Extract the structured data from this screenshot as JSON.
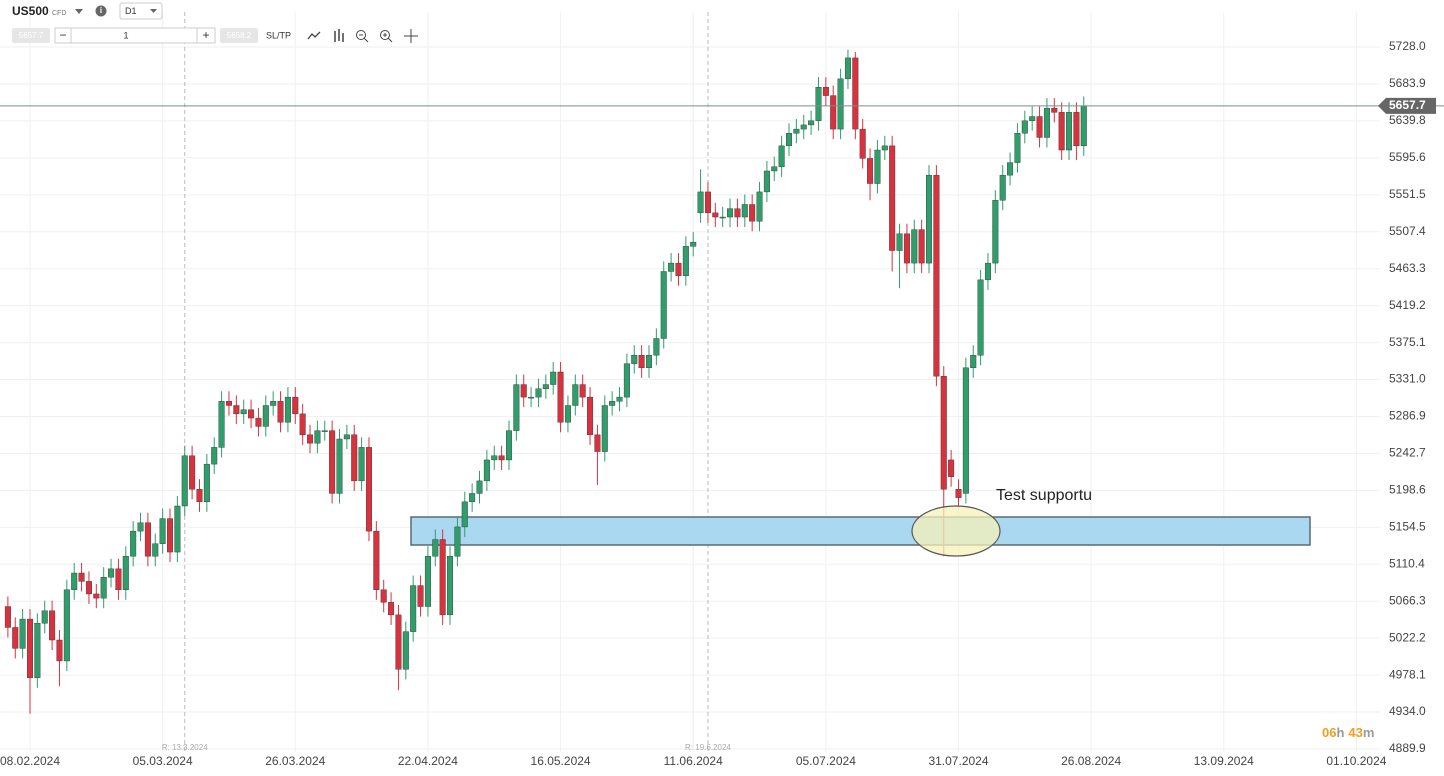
{
  "header": {
    "symbol": "US500",
    "instrument_type": "CFD",
    "timeframe": "D1",
    "bid": "5657.7",
    "quantity": "1",
    "ask": "5658.2",
    "sl_tp": "SL/TP"
  },
  "chart_data": {
    "type": "candlestick",
    "up_color": "#2f9e6b",
    "down_color": "#d8323f",
    "xlim": [
      -1.07,
      186.2
    ],
    "xticks": [
      {
        "value": 3,
        "label": "08.02.2024"
      },
      {
        "value": 21,
        "label": "05.03.2024"
      },
      {
        "value": 39,
        "label": "26.03.2024"
      },
      {
        "value": 57,
        "label": "22.04.2024"
      },
      {
        "value": 75,
        "label": "16.05.2024"
      },
      {
        "value": 93,
        "label": "11.06.2024"
      },
      {
        "value": 111,
        "label": "05.07.2024"
      },
      {
        "value": 129,
        "label": "31.07.2024"
      },
      {
        "value": 147,
        "label": "26.08.2024"
      },
      {
        "value": 165,
        "label": "13.09.2024"
      },
      {
        "value": 183,
        "label": "01.10.2024"
      }
    ],
    "ylim": [
      4886.3,
      5769.8
    ],
    "yticks": [
      {
        "value": 5728,
        "label": "5728.0"
      },
      5683.9,
      5639.8,
      5595.6,
      5551.5,
      5507.4,
      5463.3,
      5419.2,
      5375.1,
      {
        "value": 5331,
        "label": "5331.0"
      },
      5286.9,
      5242.7,
      5198.6,
      5154.5,
      5110.4,
      5066.3,
      5022.2,
      4978.1,
      {
        "value": 4934,
        "label": "4934.0"
      },
      4889.9
    ],
    "grid": true,
    "last_price": 5657.7,
    "markers": [
      {
        "x": 24,
        "label": "R: 13.3.2024"
      },
      {
        "x": 95,
        "label": "R: 19.6.2024"
      }
    ],
    "annotation": "Test supportu",
    "countdown": {
      "hours": "06",
      "hours_unit": "h",
      "minutes": "43",
      "minutes_unit": "m"
    },
    "ohlc": [
      [
        5060,
        5072,
        5023,
        5035
      ],
      [
        5035,
        5047,
        4998,
        5010
      ],
      [
        5010,
        5057,
        4998,
        5045
      ],
      [
        5045,
        5057,
        4932,
        4975
      ],
      [
        4975,
        5052,
        4963,
        5040
      ],
      [
        5040,
        5067,
        5028,
        5055
      ],
      [
        5055,
        5067,
        5008,
        5020
      ],
      [
        5020,
        5032,
        4965,
        4995
      ],
      [
        4995,
        5092,
        4983,
        5080
      ],
      [
        5080,
        5112,
        5068,
        5100
      ],
      [
        5100,
        5112,
        5078,
        5090
      ],
      [
        5090,
        5102,
        5063,
        5075
      ],
      [
        5075,
        5087,
        5058,
        5070
      ],
      [
        5070,
        5107,
        5058,
        5095
      ],
      [
        5095,
        5117,
        5083,
        5105
      ],
      [
        5105,
        5117,
        5068,
        5080
      ],
      [
        5080,
        5132,
        5068,
        5120
      ],
      [
        5120,
        5162,
        5108,
        5150
      ],
      [
        5150,
        5172,
        5138,
        5160
      ],
      [
        5160,
        5172,
        5108,
        5120
      ],
      [
        5120,
        5147,
        5108,
        5135
      ],
      [
        5135,
        5177,
        5123,
        5165
      ],
      [
        5165,
        5177,
        5113,
        5125
      ],
      [
        5125,
        5192,
        5113,
        5180
      ],
      [
        5180,
        5252,
        5168,
        5240
      ],
      [
        5240,
        5252,
        5188,
        5200
      ],
      [
        5200,
        5212,
        5173,
        5185
      ],
      [
        5185,
        5242,
        5173,
        5230
      ],
      [
        5230,
        5262,
        5218,
        5250
      ],
      [
        5250,
        5317,
        5238,
        5305
      ],
      [
        5305,
        5317,
        5288,
        5300
      ],
      [
        5300,
        5312,
        5278,
        5290
      ],
      [
        5290,
        5307,
        5278,
        5295
      ],
      [
        5295,
        5307,
        5273,
        5285
      ],
      [
        5285,
        5297,
        5263,
        5275
      ],
      [
        5275,
        5312,
        5263,
        5300
      ],
      [
        5300,
        5317,
        5288,
        5305
      ],
      [
        5305,
        5317,
        5268,
        5280
      ],
      [
        5280,
        5322,
        5268,
        5310
      ],
      [
        5310,
        5322,
        5278,
        5290
      ],
      [
        5290,
        5302,
        5253,
        5265
      ],
      [
        5265,
        5277,
        5243,
        5255
      ],
      [
        5255,
        5282,
        5243,
        5270
      ],
      [
        5270,
        5282,
        5258,
        5270
      ],
      [
        5270,
        5282,
        5183,
        5195
      ],
      [
        5195,
        5272,
        5183,
        5260
      ],
      [
        5260,
        5277,
        5248,
        5265
      ],
      [
        5265,
        5277,
        5198,
        5210
      ],
      [
        5210,
        5262,
        5198,
        5250
      ],
      [
        5250,
        5262,
        5138,
        5150
      ],
      [
        5150,
        5162,
        5068,
        5080
      ],
      [
        5080,
        5092,
        5053,
        5065
      ],
      [
        5065,
        5077,
        5038,
        5050
      ],
      [
        5050,
        5062,
        4960,
        4985
      ],
      [
        4985,
        5042,
        4973,
        5030
      ],
      [
        5030,
        5097,
        5018,
        5085
      ],
      [
        5085,
        5097,
        5048,
        5060
      ],
      [
        5060,
        5132,
        5048,
        5120
      ],
      [
        5120,
        5152,
        5108,
        5140
      ],
      [
        5140,
        5152,
        5038,
        5050
      ],
      [
        5050,
        5132,
        5038,
        5120
      ],
      [
        5120,
        5167,
        5108,
        5155
      ],
      [
        5155,
        5197,
        5143,
        5185
      ],
      [
        5185,
        5207,
        5173,
        5195
      ],
      [
        5195,
        5222,
        5183,
        5210
      ],
      [
        5210,
        5247,
        5198,
        5235
      ],
      [
        5235,
        5252,
        5223,
        5240
      ],
      [
        5240,
        5252,
        5223,
        5235
      ],
      [
        5235,
        5282,
        5223,
        5270
      ],
      [
        5270,
        5337,
        5258,
        5325
      ],
      [
        5325,
        5337,
        5298,
        5310
      ],
      [
        5310,
        5322,
        5298,
        5310
      ],
      [
        5310,
        5332,
        5298,
        5320
      ],
      [
        5320,
        5337,
        5308,
        5325
      ],
      [
        5325,
        5352,
        5313,
        5340
      ],
      [
        5340,
        5352,
        5268,
        5280
      ],
      [
        5280,
        5312,
        5268,
        5300
      ],
      [
        5300,
        5337,
        5288,
        5325
      ],
      [
        5325,
        5337,
        5298,
        5310
      ],
      [
        5310,
        5322,
        5253,
        5265
      ],
      [
        5265,
        5277,
        5205,
        5245
      ],
      [
        5245,
        5312,
        5233,
        5300
      ],
      [
        5300,
        5317,
        5288,
        5305
      ],
      [
        5305,
        5322,
        5293,
        5310
      ],
      [
        5310,
        5362,
        5298,
        5350
      ],
      [
        5350,
        5372,
        5338,
        5360
      ],
      [
        5360,
        5372,
        5333,
        5345
      ],
      [
        5345,
        5372,
        5333,
        5360
      ],
      [
        5360,
        5392,
        5348,
        5380
      ],
      [
        5380,
        5472,
        5368,
        5460
      ],
      [
        5460,
        5482,
        5448,
        5470
      ],
      [
        5470,
        5482,
        5443,
        5455
      ],
      [
        5455,
        5502,
        5443,
        5490
      ],
      [
        5490,
        5507,
        5478,
        5495
      ],
      [
        5530,
        5582,
        5518,
        5555
      ],
      [
        5555,
        5567,
        5518,
        5530
      ],
      [
        5530,
        5542,
        5513,
        5525
      ],
      [
        5525,
        5537,
        5513,
        5525
      ],
      [
        5525,
        5547,
        5513,
        5535
      ],
      [
        5535,
        5547,
        5513,
        5525
      ],
      [
        5525,
        5552,
        5513,
        5540
      ],
      [
        5540,
        5552,
        5508,
        5520
      ],
      [
        5520,
        5567,
        5508,
        5555
      ],
      [
        5555,
        5592,
        5543,
        5580
      ],
      [
        5580,
        5597,
        5568,
        5585
      ],
      [
        5585,
        5622,
        5573,
        5610
      ],
      [
        5610,
        5637,
        5598,
        5625
      ],
      [
        5625,
        5642,
        5613,
        5630
      ],
      [
        5630,
        5647,
        5618,
        5635
      ],
      [
        5635,
        5652,
        5623,
        5640
      ],
      [
        5640,
        5692,
        5628,
        5680
      ],
      [
        5680,
        5692,
        5658,
        5670
      ],
      [
        5670,
        5682,
        5618,
        5630
      ],
      [
        5630,
        5702,
        5618,
        5690
      ],
      [
        5690,
        5725,
        5678,
        5715
      ],
      [
        5715,
        5722,
        5618,
        5630
      ],
      [
        5630,
        5642,
        5583,
        5595
      ],
      [
        5595,
        5607,
        5545,
        5565
      ],
      [
        5565,
        5617,
        5553,
        5605
      ],
      [
        5605,
        5622,
        5593,
        5610
      ],
      [
        5610,
        5622,
        5460,
        5485
      ],
      [
        5485,
        5517,
        5440,
        5505
      ],
      [
        5505,
        5517,
        5458,
        5470
      ],
      [
        5470,
        5522,
        5458,
        5510
      ],
      [
        5510,
        5522,
        5458,
        5470
      ],
      [
        5470,
        5587,
        5458,
        5575
      ],
      [
        5575,
        5587,
        5323,
        5335
      ],
      [
        5335,
        5347,
        5120,
        5200
      ],
      [
        5235,
        5247,
        5203,
        5215
      ],
      [
        5200,
        5212,
        5178,
        5190
      ],
      [
        5195,
        5357,
        5183,
        5345
      ],
      [
        5345,
        5372,
        5333,
        5360
      ],
      [
        5360,
        5462,
        5348,
        5450
      ],
      [
        5450,
        5482,
        5438,
        5470
      ],
      [
        5470,
        5557,
        5458,
        5545
      ],
      [
        5545,
        5587,
        5533,
        5575
      ],
      [
        5575,
        5602,
        5563,
        5590
      ],
      [
        5590,
        5637,
        5578,
        5625
      ],
      [
        5625,
        5652,
        5613,
        5640
      ],
      [
        5640,
        5657,
        5628,
        5645
      ],
      [
        5645,
        5657,
        5608,
        5620
      ],
      [
        5620,
        5667,
        5608,
        5655
      ],
      [
        5655,
        5667,
        5638,
        5650
      ],
      [
        5650,
        5662,
        5593,
        5605
      ],
      [
        5605,
        5662,
        5593,
        5650
      ],
      [
        5650,
        5662,
        5593,
        5610
      ],
      [
        5610,
        5669,
        5598,
        5657.7
      ]
    ]
  }
}
